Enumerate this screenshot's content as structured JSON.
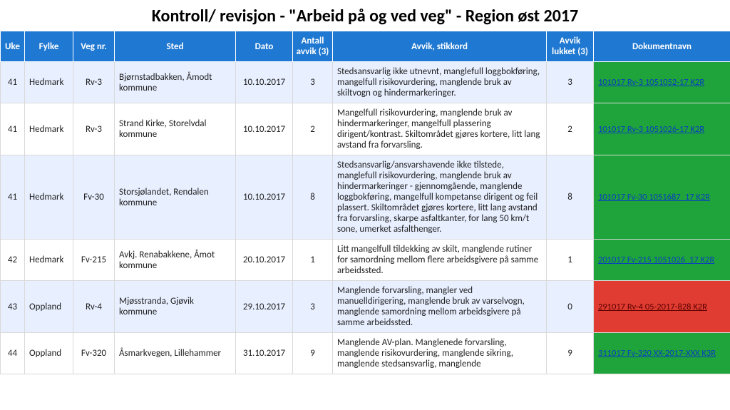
{
  "title": "Kontroll/ revisjon - \"Arbeid på og ved veg\" - Region øst 2017",
  "table": {
    "columns": {
      "uke": "Uke",
      "fylke": "Fylke",
      "veg": "Veg nr.",
      "sted": "Sted",
      "dato": "Dato",
      "antall": "Antall avvik (3)",
      "stikkord": "Avvik, stikkord",
      "lukket": "Avvik lukket (3)",
      "dok": "Dokumentnavn"
    },
    "header_bg": "#1f78d1",
    "header_fg": "#ffffff",
    "row_even_bg": "#e8efff",
    "row_odd_bg": "#ffffff",
    "doc_green": "#1fa33b",
    "doc_red": "#e03c31",
    "link_color": "#0a3fbf",
    "rows": [
      {
        "uke": "41",
        "fylke": "Hedmark",
        "veg": "Rv-3",
        "sted": "Bjørnstadbakken, Åmodt kommune",
        "dato": "10.10.2017",
        "antall": "3",
        "stikkord": "Stedsansvarlig ikke utnevnt, manglefull loggbokføring, mangelfull risikovurdering, manglende bruk av skiltvogn og hindermarkeringer.",
        "lukket": "3",
        "dok": "101017 Rv-3 1051052-17 K2R",
        "doc_status": "green"
      },
      {
        "uke": "41",
        "fylke": "Hedmark",
        "veg": "Rv-3",
        "sted": "Strand Kirke, Storelvdal kommune",
        "dato": "10.10.2017",
        "antall": "2",
        "stikkord": "Mangelfull risikovurdering, manglende bruk av hindermarkeringer, mangelfull plassering dirigent/kontrast. Skiltområdet gjøres kortere, litt lang avstand fra forvarsling.",
        "lukket": "2",
        "dok": "101017 Rv-3 1051026-17 K2R",
        "doc_status": "green"
      },
      {
        "uke": "41",
        "fylke": "Hedmark",
        "veg": "Fv-30",
        "sted": "Storsjølandet, Rendalen kommune",
        "dato": "10.10.2017",
        "antall": "8",
        "stikkord": "Stedsansvarlig/ansvarshavende ikke tilstede, manglefull risikovurdering, manglende bruk av hindermarkeringer - gjennomgående, manglende loggbokføring, mangelfull kompetanse dirigent og feil plassert. Skiltområdet gjøres kortere, litt lang avstand fra forvarsling, skarpe asfaltkanter, for lang 50 km/t sone, umerket asfalthenger.",
        "lukket": "8",
        "dok": "101017 Fv-30 1051687_17 K2R",
        "doc_status": "green"
      },
      {
        "uke": "42",
        "fylke": "Hedmark",
        "veg": "Fv-215",
        "sted": "Avkj. Renabakkene, Åmot kommune",
        "dato": "20.10.2017",
        "antall": "1",
        "stikkord": "Litt mangelfull tildekking av skilt, manglende rutiner for samordning mellom flere arbeidsgivere på samme arbeidssted.",
        "lukket": "1",
        "dok": "201017 Fv-215 1051026_17 K2R",
        "doc_status": "green"
      },
      {
        "uke": "43",
        "fylke": "Oppland",
        "veg": "Rv-4",
        "sted": "Mjøsstranda, Gjøvik kommune",
        "dato": "29.10.2017",
        "antall": "3",
        "stikkord": "Manglende forvarsling, mangler ved manuelldirigering, manglende bruk av varselvogn, manglende samordning mellom arbeidsgivere på samme arbeidssted.",
        "lukket": "0",
        "dok": "291017 Rv-4 05-2017-828 K2R",
        "doc_status": "red"
      },
      {
        "uke": "44",
        "fylke": "Oppland",
        "veg": "Fv-320",
        "sted": "Åsmarkvegen, Lillehammer",
        "dato": "31.10.2017",
        "antall": "9",
        "stikkord": "Manglende AV-plan. Manglenede forvarsling, manglende risikovurdering, manglende sikring, manglende stedsansvarlig, manglende",
        "lukket": "9",
        "dok": "311017 Fv-320 XX-2017-XXX K3R",
        "doc_status": "green"
      }
    ]
  }
}
